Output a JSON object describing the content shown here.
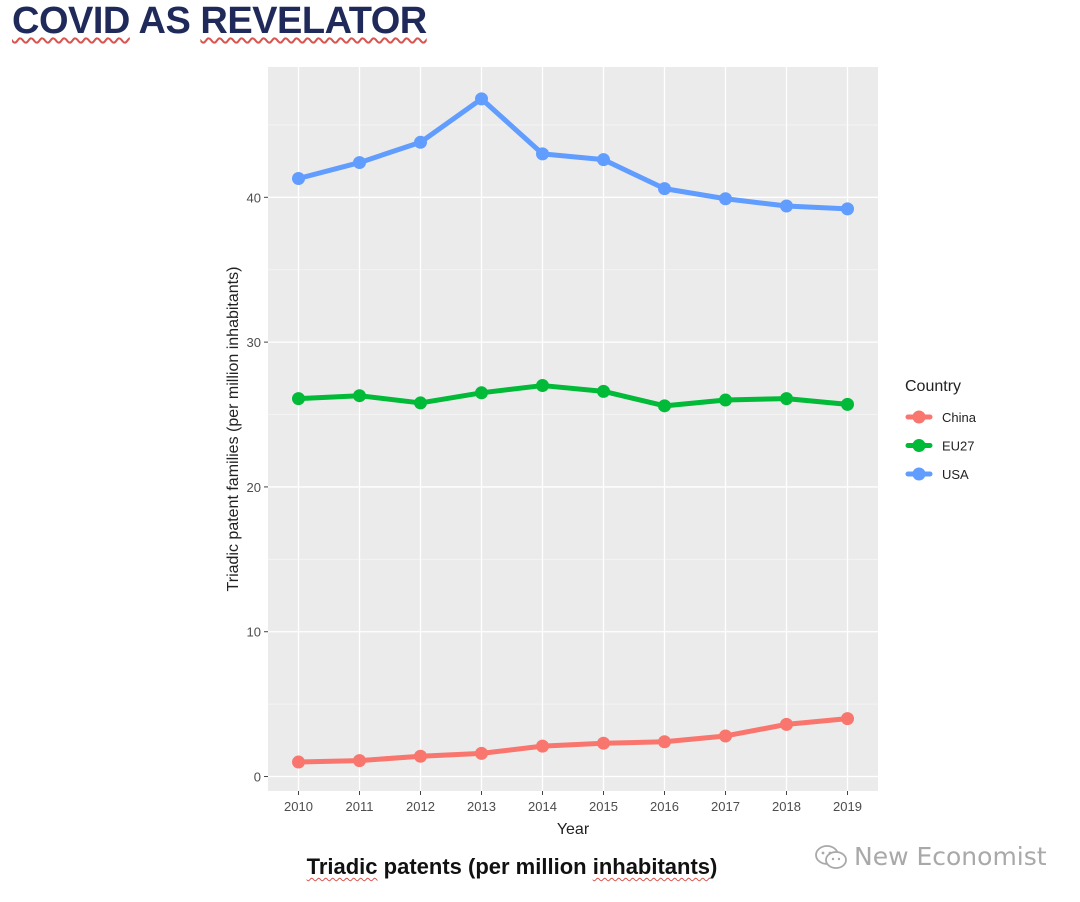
{
  "slide": {
    "title_part1": "COVID",
    "title_part2": "AS",
    "title_part3": "REVELATOR",
    "caption_part1": "Triadic",
    "caption_part2": "patents (per million",
    "caption_part3": "inhabitants",
    "caption_part4": ")",
    "watermark": "New Economist",
    "watermark_icon": "wechat-icon"
  },
  "chart_data": {
    "type": "line",
    "xlabel": "Year",
    "ylabel": "Triadic patent families (per million inhabitants)",
    "x": [
      2010,
      2011,
      2012,
      2013,
      2014,
      2015,
      2016,
      2017,
      2018,
      2019
    ],
    "xlim": [
      2009.5,
      2019.5
    ],
    "ylim": [
      -1,
      49
    ],
    "yticks": [
      0,
      10,
      20,
      30,
      40
    ],
    "grid": true,
    "legend_title": "Country",
    "legend_position": "right",
    "series": [
      {
        "name": "China",
        "color": "#f8766d",
        "values": [
          1.0,
          1.1,
          1.4,
          1.6,
          2.1,
          2.3,
          2.4,
          2.8,
          3.6,
          4.0
        ]
      },
      {
        "name": "EU27",
        "color": "#00ba38",
        "values": [
          26.1,
          26.3,
          25.8,
          26.5,
          27.0,
          26.6,
          25.6,
          26.0,
          26.1,
          25.7
        ]
      },
      {
        "name": "USA",
        "color": "#619cff",
        "values": [
          41.3,
          42.4,
          43.8,
          46.8,
          43.0,
          42.6,
          40.6,
          39.9,
          39.4,
          39.2
        ]
      }
    ]
  }
}
